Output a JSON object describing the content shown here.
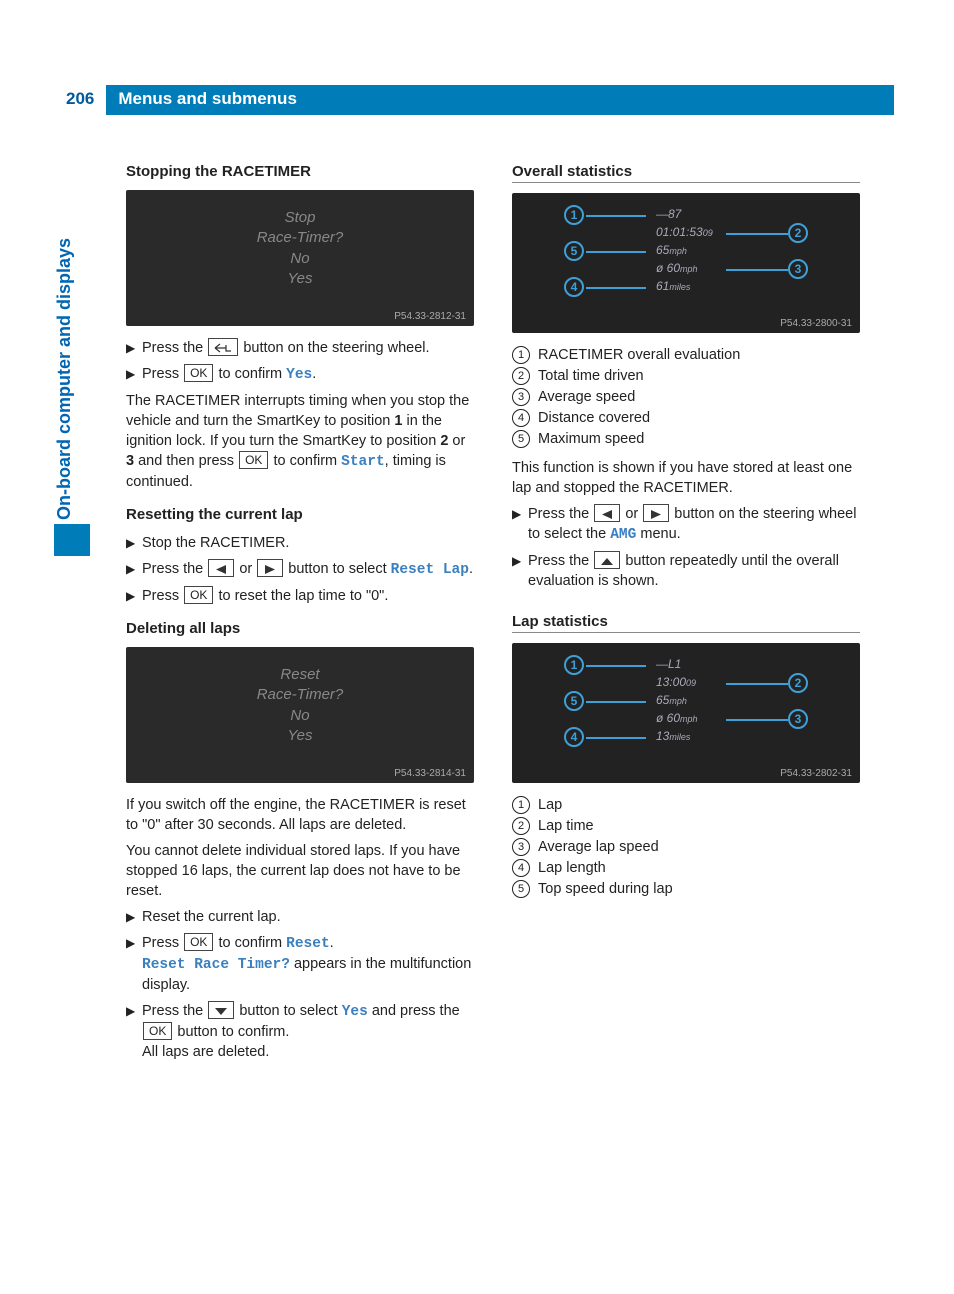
{
  "page_number": "206",
  "header_title": "Menus and submenus",
  "side_tab": "On-board computer and displays",
  "colors": {
    "header_bg": "#007db8",
    "header_text": "#ffffff",
    "accent": "#0066b3",
    "display_term": "#3a7fbf",
    "screenshot_bg": "#2a2a2a",
    "screenshot_text": "#888888",
    "callout": "#3fa0d8"
  },
  "keys": {
    "ok": "OK",
    "back": "back",
    "left": "left",
    "right": "right",
    "up": "up",
    "down": "down"
  },
  "left": {
    "sec1": {
      "heading": "Stopping the RACETIMER",
      "screenshot": {
        "lines": [
          "Stop",
          "Race-Timer?",
          "No",
          "Yes"
        ],
        "caption": "P54.33-2812-31"
      },
      "steps": [
        {
          "pre": "Press the ",
          "key": "back",
          "post": " button on the steering wheel."
        },
        {
          "pre": "Press ",
          "key": "ok",
          "post_a": " to confirm ",
          "term": "Yes",
          "post_b": "."
        }
      ],
      "para_a": "The RACETIMER interrupts timing when you stop the vehicle and turn the SmartKey to position ",
      "para_b": " in the ignition lock. If you turn the SmartKey to position ",
      "para_c": " or ",
      "para_d": " and then press ",
      "para_term": "Start",
      "para_e": ", timing is continued.",
      "pos1": "1",
      "pos2": "2",
      "pos3": "3",
      "para_key": "ok",
      "para_mid": " to confirm "
    },
    "sec2": {
      "heading": "Resetting the current lap",
      "steps": [
        {
          "text": "Stop the RACETIMER."
        },
        {
          "pre": "Press the ",
          "key1": "left",
          "mid": " or ",
          "key2": "right",
          "post": " button to select ",
          "term": "Reset Lap",
          "tail": "."
        },
        {
          "pre": "Press ",
          "key": "ok",
          "post": " to reset the lap time to \"0\"."
        }
      ]
    },
    "sec3": {
      "heading": "Deleting all laps",
      "screenshot": {
        "lines": [
          "Reset",
          "Race-Timer?",
          "No",
          "Yes"
        ],
        "caption": "P54.33-2814-31"
      },
      "para1": "If you switch off the engine, the RACETIMER is reset to \"0\" after 30 seconds. All laps are deleted.",
      "para2": "You cannot delete individual stored laps. If you have stopped 16 laps, the current lap does not have to be reset.",
      "steps": [
        {
          "text": "Reset the current lap."
        },
        {
          "pre": "Press ",
          "key": "ok",
          "post_a": " to confirm ",
          "term1": "Reset",
          "post_b": ".",
          "line2_term": "Reset Race Timer?",
          "line2_post": " appears in the multifunction display."
        },
        {
          "pre": "Press the ",
          "key1": "down",
          "mid": " button to select ",
          "term": "Yes",
          "post_a": " and press the ",
          "key2": "ok",
          "post_b": " button to confirm.",
          "line2": "All laps are deleted."
        }
      ]
    }
  },
  "right": {
    "sec1": {
      "heading": "Overall statistics",
      "diagram": {
        "caption": "P54.33-2800-31",
        "rows": [
          {
            "n": "1",
            "label": "—87",
            "right_n": null
          },
          {
            "n": null,
            "label": "01:01:53",
            "unit": "09",
            "right_n": "2"
          },
          {
            "n": "5",
            "label": "65",
            "unit": "mph",
            "right_n": null
          },
          {
            "n": null,
            "label": "ø  60",
            "unit": "mph",
            "right_n": "3"
          },
          {
            "n": "4",
            "label": "61",
            "unit": "miles",
            "right_n": null
          }
        ]
      },
      "legend": [
        {
          "n": "1",
          "t": "RACETIMER overall evaluation"
        },
        {
          "n": "2",
          "t": "Total time driven"
        },
        {
          "n": "3",
          "t": "Average speed"
        },
        {
          "n": "4",
          "t": "Distance covered"
        },
        {
          "n": "5",
          "t": "Maximum speed"
        }
      ],
      "para": "This function is shown if you have stored at least one lap and stopped the RACETIMER.",
      "steps": [
        {
          "pre": "Press the ",
          "key1": "left",
          "mid": " or ",
          "key2": "right",
          "post_a": " button on the steering wheel to select the ",
          "term": "AMG",
          "post_b": " menu."
        },
        {
          "pre": "Press the ",
          "key": "up",
          "post": " button repeatedly until the overall evaluation is shown."
        }
      ]
    },
    "sec2": {
      "heading": "Lap statistics",
      "diagram": {
        "caption": "P54.33-2802-31",
        "rows": [
          {
            "n": "1",
            "label": "—L1",
            "right_n": null
          },
          {
            "n": null,
            "label": "13:00",
            "unit": "09",
            "right_n": "2"
          },
          {
            "n": "5",
            "label": "65",
            "unit": "mph",
            "right_n": null
          },
          {
            "n": null,
            "label": "ø  60",
            "unit": "mph",
            "right_n": "3"
          },
          {
            "n": "4",
            "label": "13",
            "unit": "miles",
            "right_n": null
          }
        ]
      },
      "legend": [
        {
          "n": "1",
          "t": "Lap"
        },
        {
          "n": "2",
          "t": "Lap time"
        },
        {
          "n": "3",
          "t": "Average lap speed"
        },
        {
          "n": "4",
          "t": "Lap length"
        },
        {
          "n": "5",
          "t": "Top speed during lap"
        }
      ]
    }
  }
}
